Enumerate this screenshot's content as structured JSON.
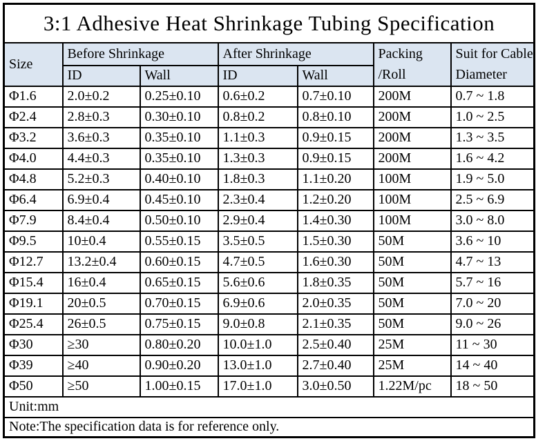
{
  "title": "3:1 Adhesive Heat Shrinkage Tubing Specification",
  "colors": {
    "header_bg": "#dbe5f1",
    "border": "#000000",
    "text": "#000000",
    "body_bg": "#ffffff"
  },
  "table": {
    "headers": {
      "size": "Size",
      "before_group": "Before Shrinkage",
      "after_group": "After Shrinkage",
      "before_id": "ID",
      "before_wall": "Wall",
      "after_id": "ID",
      "after_wall": "Wall",
      "packing_line1": "Packing",
      "packing_line2": "/Roll",
      "suit_line1": "Suit for Cable",
      "suit_line2": "Diameter"
    },
    "rows": [
      [
        "Φ1.6",
        "2.0±0.2",
        "0.25±0.10",
        "0.6±0.2",
        "0.7±0.10",
        "200M",
        "0.7 ~ 1.8"
      ],
      [
        "Φ2.4",
        "2.8±0.3",
        "0.30±0.10",
        "0.8±0.2",
        "0.8±0.10",
        "200M",
        "1.0 ~ 2.5"
      ],
      [
        "Φ3.2",
        "3.6±0.3",
        "0.35±0.10",
        "1.1±0.3",
        "0.9±0.15",
        "200M",
        "1.3 ~ 3.5"
      ],
      [
        "Φ4.0",
        "4.4±0.3",
        "0.35±0.10",
        "1.3±0.3",
        "0.9±0.15",
        "200M",
        "1.6 ~ 4.2"
      ],
      [
        "Φ4.8",
        "5.2±0.3",
        "0.40±0.10",
        "1.8±0.3",
        "1.1±0.20",
        "100M",
        "1.9 ~ 5.0"
      ],
      [
        "Φ6.4",
        "6.9±0.4",
        "0.45±0.10",
        "2.3±0.4",
        "1.2±0.20",
        "100M",
        "2.5 ~ 6.9"
      ],
      [
        "Φ7.9",
        "8.4±0.4",
        "0.50±0.10",
        "2.9±0.4",
        "1.4±0.30",
        "100M",
        "3.0 ~ 8.0"
      ],
      [
        "Φ9.5",
        "10±0.4",
        "0.55±0.15",
        "3.5±0.5",
        "1.5±0.30",
        "50M",
        "3.6 ~ 10"
      ],
      [
        "Φ12.7",
        "13.2±0.4",
        "0.60±0.15",
        "4.7±0.5",
        "1.6±0.30",
        "50M",
        "4.7 ~ 13"
      ],
      [
        "Φ15.4",
        "16±0.4",
        "0.65±0.15",
        "5.6±0.6",
        "1.8±0.35",
        "50M",
        "5.7 ~ 16"
      ],
      [
        "Φ19.1",
        "20±0.5",
        "0.70±0.15",
        "6.9±0.6",
        "2.0±0.35",
        "50M",
        "7.0 ~ 20"
      ],
      [
        "Φ25.4",
        "26±0.5",
        "0.75±0.15",
        "9.0±0.8",
        "2.1±0.35",
        "50M",
        "9.0 ~ 26"
      ],
      [
        "Φ30",
        "≥30",
        "0.80±0.20",
        "10.0±1.0",
        "2.5±0.40",
        "25M",
        "11 ~ 30"
      ],
      [
        "Φ39",
        "≥40",
        "0.90±0.20",
        "13.0±1.0",
        "2.7±0.40",
        "25M",
        "14 ~ 40"
      ],
      [
        "Φ50",
        "≥50",
        "1.00±0.15",
        "17.0±1.0",
        "3.0±0.50",
        "1.22M/pc",
        "18 ~ 50"
      ]
    ],
    "unit": "Unit:mm",
    "note": "Note:The specification data is for reference only."
  }
}
